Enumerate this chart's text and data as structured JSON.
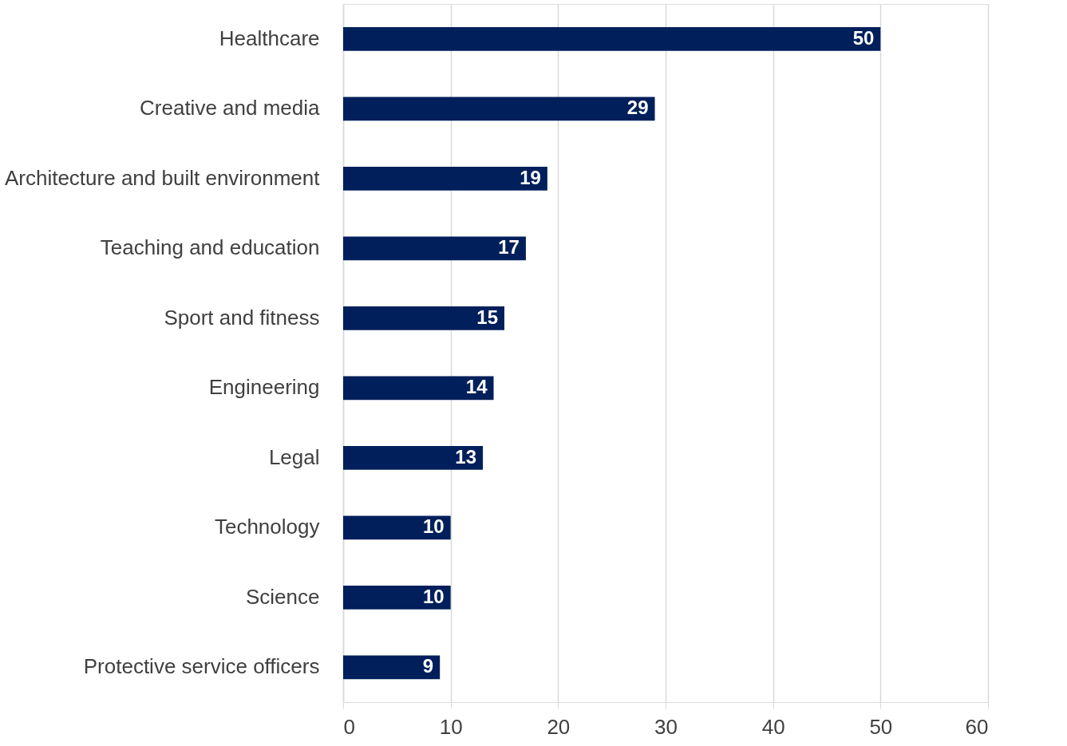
{
  "chart_data": {
    "type": "bar",
    "orientation": "horizontal",
    "categories": [
      "Healthcare",
      "Creative and media",
      "Architecture and built environment",
      "Teaching and education",
      "Sport and fitness",
      "Engineering",
      "Legal",
      "Technology",
      "Science",
      "Protective service officers"
    ],
    "values": [
      50,
      29,
      19,
      17,
      15,
      14,
      13,
      10,
      10,
      9
    ],
    "color": "#001f5b",
    "xlim": [
      0,
      60
    ],
    "xticks": [
      0,
      10,
      20,
      30,
      40,
      50,
      60
    ],
    "grid": "x",
    "data_labels": true
  }
}
